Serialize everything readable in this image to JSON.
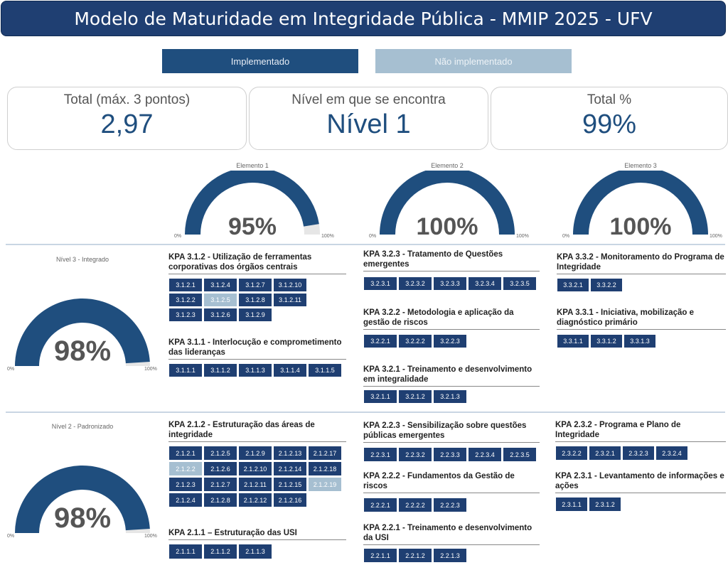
{
  "header": {
    "title": "Modelo de Maturidade em Integridade Pública - MMIP 2025 - UFV"
  },
  "legend": {
    "implemented": "Implementado",
    "not_implemented": "Não implementado"
  },
  "colors": {
    "implemented": "#1f3f72",
    "not_implemented": "#a6bfd1",
    "gauge_fill": "#1f4e7e",
    "gauge_track": "#e6e6e6"
  },
  "cards": [
    {
      "label": "Total (máx. 3 pontos)",
      "value": "2,97"
    },
    {
      "label": "Nível em que se encontra",
      "value": "Nível 1"
    },
    {
      "label": "Total %",
      "value": "99%"
    }
  ],
  "gauges": [
    {
      "id": "elemento-1",
      "label": "Elemento 1",
      "percent_text": "95%",
      "fraction": 0.95,
      "min": "0%",
      "max": "100%"
    },
    {
      "id": "elemento-2",
      "label": "Elemento 2",
      "percent_text": "100%",
      "fraction": 1.0,
      "min": "0%",
      "max": "100%"
    },
    {
      "id": "elemento-3",
      "label": "Elemento 3",
      "percent_text": "100%",
      "fraction": 1.0,
      "min": "0%",
      "max": "100%"
    },
    {
      "id": "nivel-3",
      "label": "Nível 3 - Integrado",
      "percent_text": "98%",
      "fraction": 0.98,
      "min": "0%",
      "max": "100%"
    },
    {
      "id": "nivel-2",
      "label": "Nível 2 - Padronizado",
      "percent_text": "98%",
      "fraction": 0.98,
      "min": "0%",
      "max": "100%"
    }
  ],
  "kpas": [
    {
      "title": "KPA 3.1.2 - Utilização de ferramentas corporativas dos órgãos centrais",
      "tiles": [
        {
          "code": "3.1.2.1",
          "impl": true
        },
        {
          "code": "3.1.2.4",
          "impl": true
        },
        {
          "code": "3.1.2.7",
          "impl": true
        },
        {
          "code": "3.1.2.10",
          "impl": true
        },
        {
          "code": "3.1.2.2",
          "impl": true
        },
        {
          "code": "3.1.2.5",
          "impl": false
        },
        {
          "code": "3.1.2.8",
          "impl": true
        },
        {
          "code": "3.1.2.11",
          "impl": true
        },
        {
          "code": "3.1.2.3",
          "impl": true
        },
        {
          "code": "3.1.2.6",
          "impl": true
        },
        {
          "code": "3.1.2.9",
          "impl": true
        }
      ]
    },
    {
      "title": "KPA 3.1.1 - Interlocução e comprometimento das lideranças",
      "tiles": [
        {
          "code": "3.1.1.1",
          "impl": true
        },
        {
          "code": "3.1.1.2",
          "impl": true
        },
        {
          "code": "3.1.1.3",
          "impl": true
        },
        {
          "code": "3.1.1.4",
          "impl": true
        },
        {
          "code": "3.1.1.5",
          "impl": true
        }
      ]
    },
    {
      "title": "KPA 3.2.3 - Tratamento de Questões emergentes",
      "tiles": [
        {
          "code": "3.2.3.1",
          "impl": true
        },
        {
          "code": "3.2.3.2",
          "impl": true
        },
        {
          "code": "3.2.3.3",
          "impl": true
        },
        {
          "code": "3.2.3.4",
          "impl": true
        },
        {
          "code": "3.2.3.5",
          "impl": true
        }
      ]
    },
    {
      "title": "KPA 3.2.2 - Metodologia e aplicação da gestão de riscos",
      "tiles": [
        {
          "code": "3.2.2.1",
          "impl": true
        },
        {
          "code": "3.2.2.2",
          "impl": true
        },
        {
          "code": "3.2.2.3",
          "impl": true
        }
      ]
    },
    {
      "title": "KPA 3.2.1 - Treinamento e desenvolvimento em integralidade",
      "tiles": [
        {
          "code": "3.2.1.1",
          "impl": true
        },
        {
          "code": "3.2.1.2",
          "impl": true
        },
        {
          "code": "3.2.1.3",
          "impl": true
        }
      ]
    },
    {
      "title": "KPA 3.3.2 - Monitoramento do Programa de Integridade",
      "tiles": [
        {
          "code": "3.3.2.1",
          "impl": true
        },
        {
          "code": "3.3.2.2",
          "impl": true
        }
      ]
    },
    {
      "title": "KPA 3.3.1 - Iniciativa, mobilização e diagnóstico primário",
      "tiles": [
        {
          "code": "3.3.1.1",
          "impl": true
        },
        {
          "code": "3.3.1.2",
          "impl": true
        },
        {
          "code": "3.3.1.3",
          "impl": true
        }
      ]
    },
    {
      "title": "KPA 2.1.2 - Estruturação das áreas de integridade",
      "tiles": [
        {
          "code": "2.1.2.1",
          "impl": true
        },
        {
          "code": "2.1.2.5",
          "impl": true
        },
        {
          "code": "2.1.2.9",
          "impl": true
        },
        {
          "code": "2.1.2.13",
          "impl": true
        },
        {
          "code": "2.1.2.17",
          "impl": true
        },
        {
          "code": "2.1.2.2",
          "impl": false
        },
        {
          "code": "2.1.2.6",
          "impl": true
        },
        {
          "code": "2.1.2.10",
          "impl": true
        },
        {
          "code": "2.1.2.14",
          "impl": true
        },
        {
          "code": "2.1.2.18",
          "impl": true
        },
        {
          "code": "2.1.2.3",
          "impl": true
        },
        {
          "code": "2.1.2.7",
          "impl": true
        },
        {
          "code": "2.1.2.11",
          "impl": true
        },
        {
          "code": "2.1.2.15",
          "impl": true
        },
        {
          "code": "2.1.2.19",
          "impl": false
        },
        {
          "code": "2.1.2.4",
          "impl": true
        },
        {
          "code": "2.1.2.8",
          "impl": true
        },
        {
          "code": "2.1.2.12",
          "impl": true
        },
        {
          "code": "2.1.2.16",
          "impl": true
        }
      ]
    },
    {
      "title": "KPA 2.1.1 – Estruturação das USI",
      "tiles": [
        {
          "code": "2.1.1.1",
          "impl": true
        },
        {
          "code": "2.1.1.2",
          "impl": true
        },
        {
          "code": "2.1.1.3",
          "impl": true
        }
      ]
    },
    {
      "title": "KPA 2.2.3 - Sensibilização sobre questões públicas emergentes",
      "tiles": [
        {
          "code": "2.2.3.1",
          "impl": true
        },
        {
          "code": "2.2.3.2",
          "impl": true
        },
        {
          "code": "2.2.3.3",
          "impl": true
        },
        {
          "code": "2.2.3.4",
          "impl": true
        },
        {
          "code": "2.2.3.5",
          "impl": true
        }
      ]
    },
    {
      "title": "KPA 2.2.2 - Fundamentos da Gestão de riscos",
      "tiles": [
        {
          "code": "2.2.2.1",
          "impl": true
        },
        {
          "code": "2.2.2.2",
          "impl": true
        },
        {
          "code": "2.2.2.3",
          "impl": true
        }
      ]
    },
    {
      "title": "KPA 2.2.1 - Treinamento e desenvolvimento da USI",
      "tiles": [
        {
          "code": "2.2.1.1",
          "impl": true
        },
        {
          "code": "2.2.1.2",
          "impl": true
        },
        {
          "code": "2.2.1.3",
          "impl": true
        }
      ]
    },
    {
      "title": "KPA 2.3.2 - Programa e Plano de Integridade",
      "tiles": [
        {
          "code": "2.3.2.2",
          "impl": true
        },
        {
          "code": "2.3.2.1",
          "impl": true
        },
        {
          "code": "2.3.2.3",
          "impl": true
        },
        {
          "code": "2.3.2.4",
          "impl": true
        }
      ]
    },
    {
      "title": "KPA 2.3.1 - Levantamento de informações e ações",
      "tiles": [
        {
          "code": "2.3.1.1",
          "impl": true
        },
        {
          "code": "2.3.1.2",
          "impl": true
        }
      ]
    }
  ]
}
